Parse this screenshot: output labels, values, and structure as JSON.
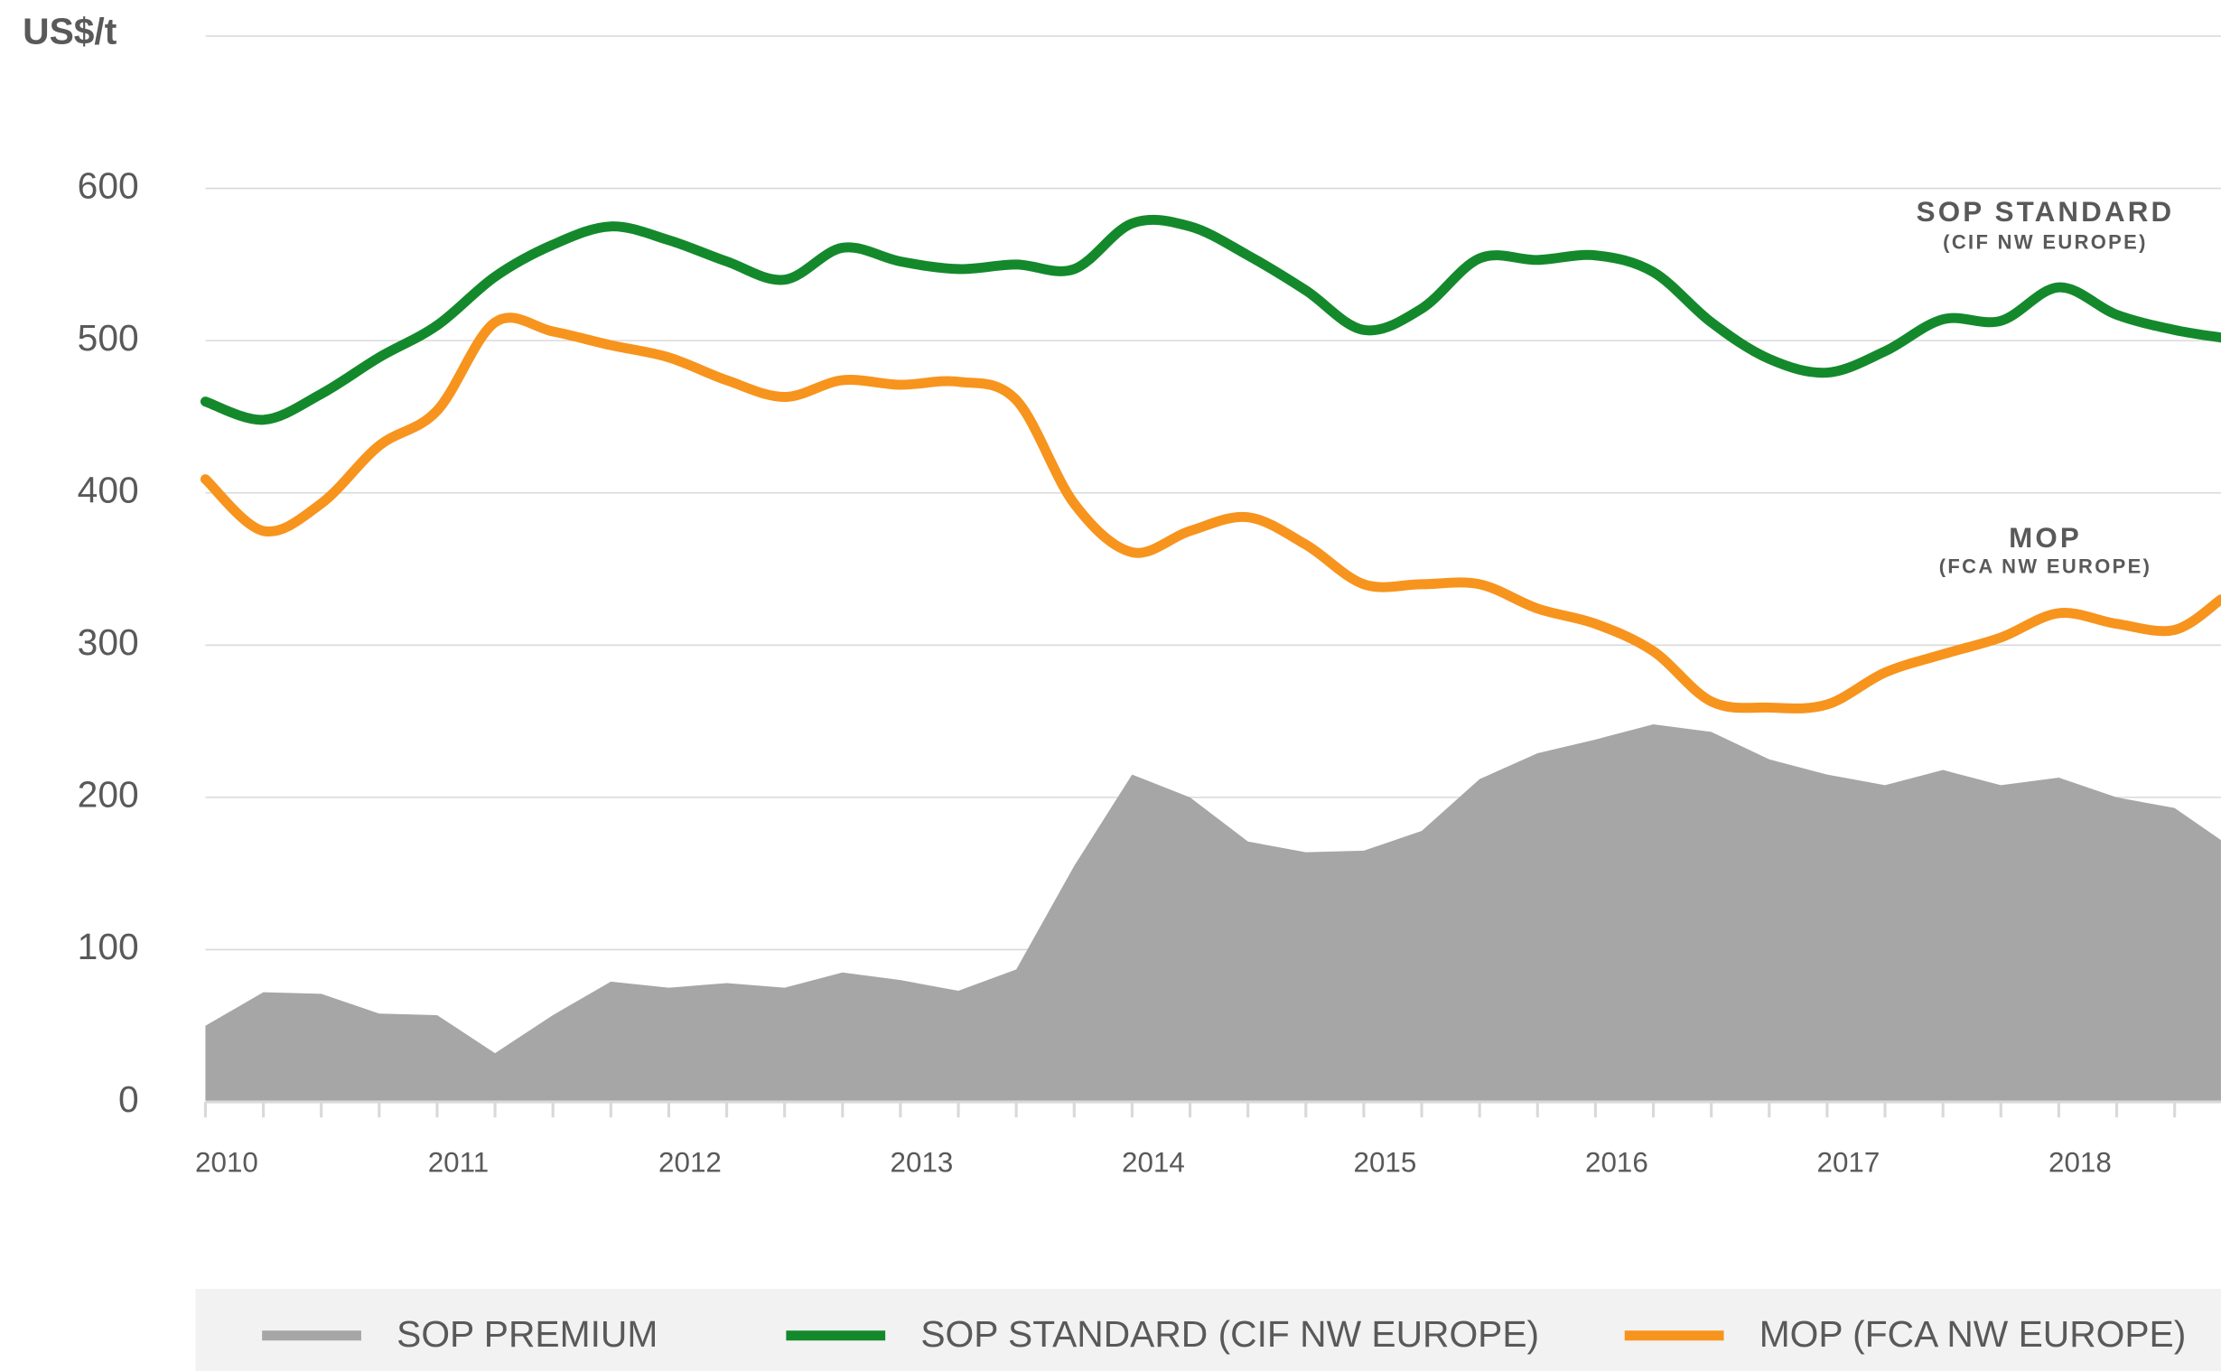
{
  "chart_data": {
    "type": "line",
    "y_label": "US$/t",
    "x": [
      2010,
      2010.25,
      2010.5,
      2010.75,
      2011,
      2011.25,
      2011.5,
      2011.75,
      2012,
      2012.25,
      2012.5,
      2012.75,
      2013,
      2013.25,
      2013.5,
      2013.75,
      2014,
      2014.25,
      2014.5,
      2014.75,
      2015,
      2015.25,
      2015.5,
      2015.75,
      2016,
      2016.25,
      2016.5,
      2016.75,
      2017,
      2017.25,
      2017.5,
      2017.75,
      2018,
      2018.25,
      2018.5,
      2018.7
    ],
    "xlim": [
      2010,
      2018.7
    ],
    "xticks": [
      2010,
      2011,
      2012,
      2013,
      2014,
      2015,
      2016,
      2017,
      2018
    ],
    "ylim": [
      0,
      700
    ],
    "yticks": [
      0,
      100,
      200,
      300,
      400,
      500,
      600
    ],
    "grid": true,
    "legend": "bottom",
    "series": [
      {
        "name": "SOP PREMIUM",
        "color": "#a6a6a6",
        "style": "area",
        "values": [
          50,
          72,
          71,
          58,
          57,
          32,
          57,
          79,
          75,
          78,
          75,
          85,
          80,
          73,
          87,
          155,
          215,
          200,
          171,
          164,
          165,
          178,
          212,
          229,
          238,
          248,
          243,
          225,
          215,
          208,
          218,
          208,
          213,
          200,
          193,
          172
        ]
      },
      {
        "name": "SOP STANDARD (CIF NW EUROPE)",
        "color": "#14892c",
        "style": "line",
        "values": [
          460,
          448,
          465,
          489,
          510,
          542,
          563,
          575,
          566,
          552,
          540,
          561,
          552,
          547,
          550,
          547,
          577,
          575,
          556,
          533,
          507,
          521,
          554,
          553,
          556,
          545,
          512,
          488,
          479,
          493,
          514,
          513,
          535,
          517,
          507,
          502
        ]
      },
      {
        "name": "MOP (FCA NW EUROPE)",
        "color": "#f7941d",
        "style": "line",
        "values": [
          409,
          375,
          393,
          431,
          454,
          512,
          506,
          497,
          489,
          474,
          463,
          474,
          471,
          473,
          461,
          393,
          361,
          375,
          384,
          366,
          340,
          340,
          340,
          324,
          314,
          296,
          263,
          259,
          261,
          282,
          294,
          305,
          321,
          314,
          310,
          330
        ]
      }
    ],
    "annotations": [
      {
        "title": "SOP STANDARD",
        "subtitle": "(CIF NW EUROPE)"
      },
      {
        "title": "MOP",
        "subtitle": "(FCA NW EUROPE)"
      }
    ]
  }
}
